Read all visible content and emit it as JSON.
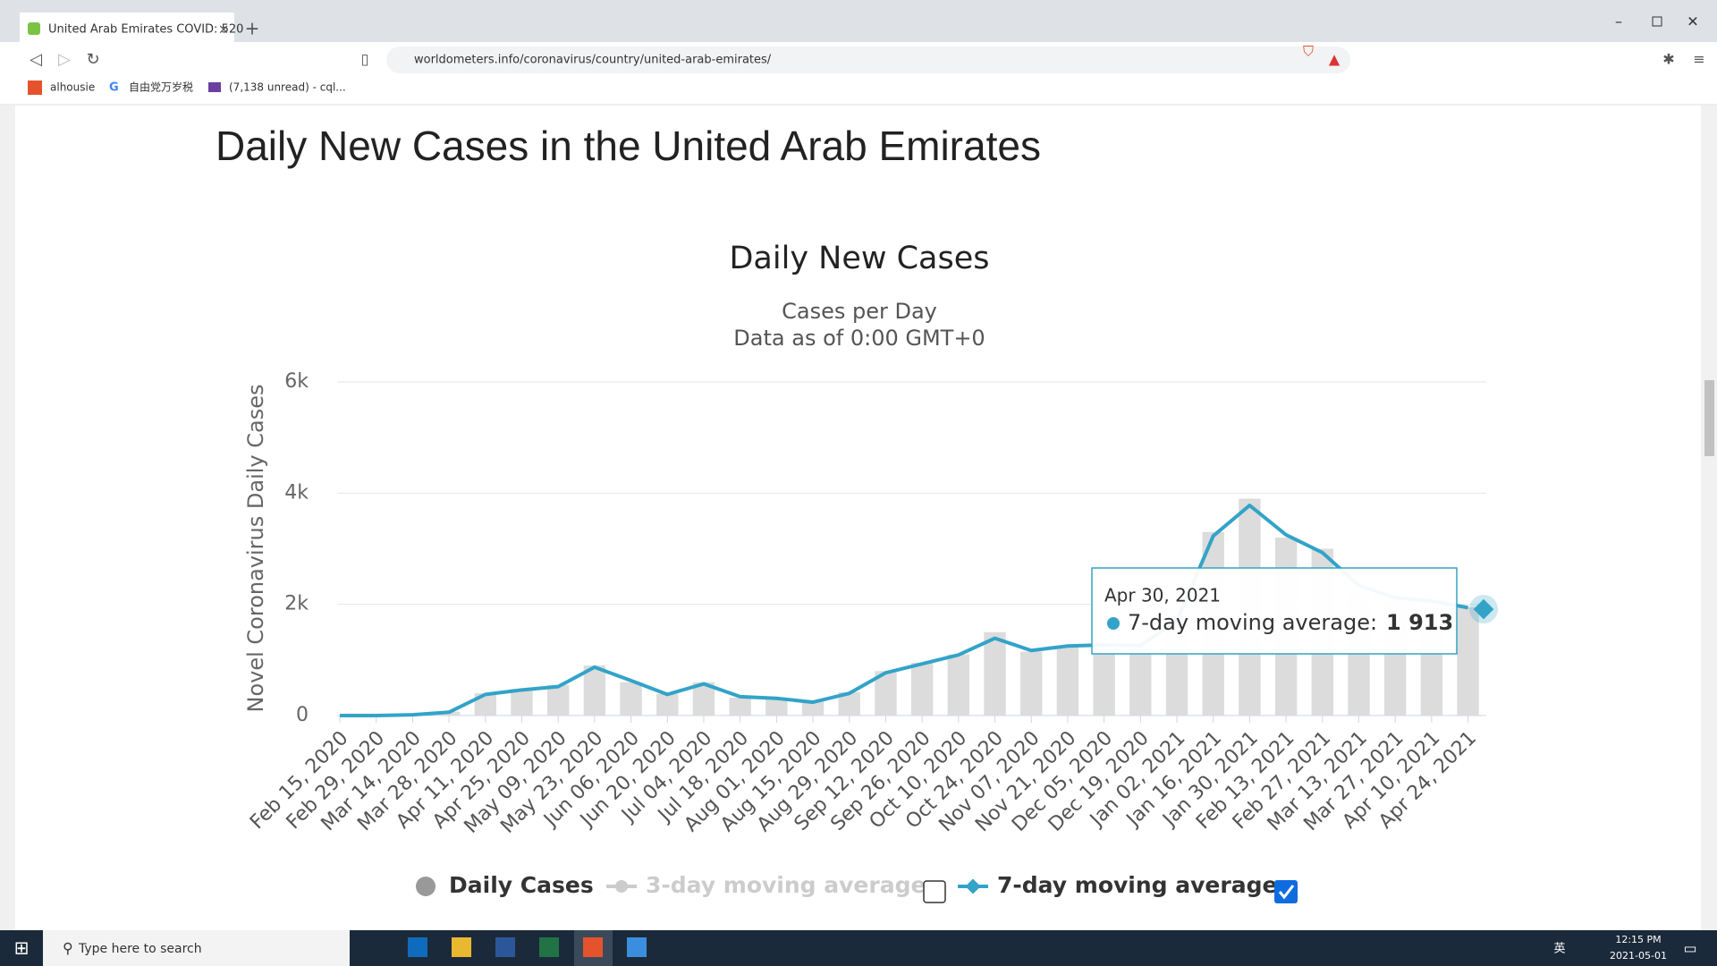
{
  "browser": {
    "tab_title": "United Arab Emirates COVID: 520",
    "url": "worldometers.info/coronavirus/country/united-arab-emirates/",
    "bookmarks": [
      "alhousie",
      "自由党万岁税",
      "(7,138 unread) - cql..."
    ]
  },
  "page": {
    "heading": "Daily New Cases in the United Arab Emirates"
  },
  "chart_data": {
    "type": "line",
    "title": "Daily New Cases",
    "subtitle": [
      "Cases per Day",
      "Data as of 0:00 GMT+0"
    ],
    "ylabel": "Novel Coronavirus Daily Cases",
    "categories": [
      "Feb 15, 2020",
      "Feb 29, 2020",
      "Mar 14, 2020",
      "Mar 28, 2020",
      "Apr 11, 2020",
      "Apr 25, 2020",
      "May 09, 2020",
      "May 23, 2020",
      "Jun 06, 2020",
      "Jun 20, 2020",
      "Jul 04, 2020",
      "Jul 18, 2020",
      "Aug 01, 2020",
      "Aug 15, 2020",
      "Aug 29, 2020",
      "Sep 12, 2020",
      "Sep 26, 2020",
      "Oct 10, 2020",
      "Oct 24, 2020",
      "Nov 07, 2020",
      "Nov 21, 2020",
      "Dec 05, 2020",
      "Dec 19, 2020",
      "Jan 02, 2021",
      "Jan 16, 2021",
      "Jan 30, 2021",
      "Feb 13, 2021",
      "Feb 27, 2021",
      "Mar 13, 2021",
      "Mar 27, 2021",
      "Apr 10, 2021",
      "Apr 24, 2021"
    ],
    "series": [
      {
        "name": "Daily Cases",
        "kind": "bar",
        "color": "#dcdcdc",
        "values": [
          0,
          0,
          10,
          70,
          400,
          480,
          550,
          900,
          600,
          390,
          600,
          320,
          300,
          250,
          420,
          800,
          950,
          1100,
          1500,
          1150,
          1250,
          1300,
          1250,
          1800,
          3300,
          3900,
          3200,
          3000,
          2300,
          2100,
          2050,
          1950
        ]
      },
      {
        "name": "7-day moving average",
        "kind": "line",
        "color": "#33a3c8",
        "values": [
          0,
          0,
          15,
          60,
          380,
          460,
          520,
          870,
          630,
          380,
          570,
          340,
          310,
          240,
          400,
          770,
          930,
          1090,
          1390,
          1170,
          1250,
          1270,
          1260,
          1700,
          3230,
          3780,
          3250,
          2930,
          2340,
          2120,
          2060,
          1940
        ]
      }
    ],
    "hidden_series": [
      {
        "name": "3-day moving average",
        "color": "#cccccc"
      }
    ],
    "ylim": [
      0,
      6000
    ],
    "yticks": [
      0,
      {
        "value": 2000,
        "label": "2k"
      },
      {
        "value": 4000,
        "label": "4k"
      },
      {
        "value": 6000,
        "label": "6k"
      }
    ],
    "grid": true,
    "tooltip": {
      "date": "Apr 30, 2021",
      "series_label": "7-day moving average:",
      "value": 1913,
      "label": "1 913"
    }
  },
  "taskbar": {
    "search": "Type here to search",
    "time": "12:15 PM",
    "date": "2021-05-01",
    "ime": "英"
  }
}
